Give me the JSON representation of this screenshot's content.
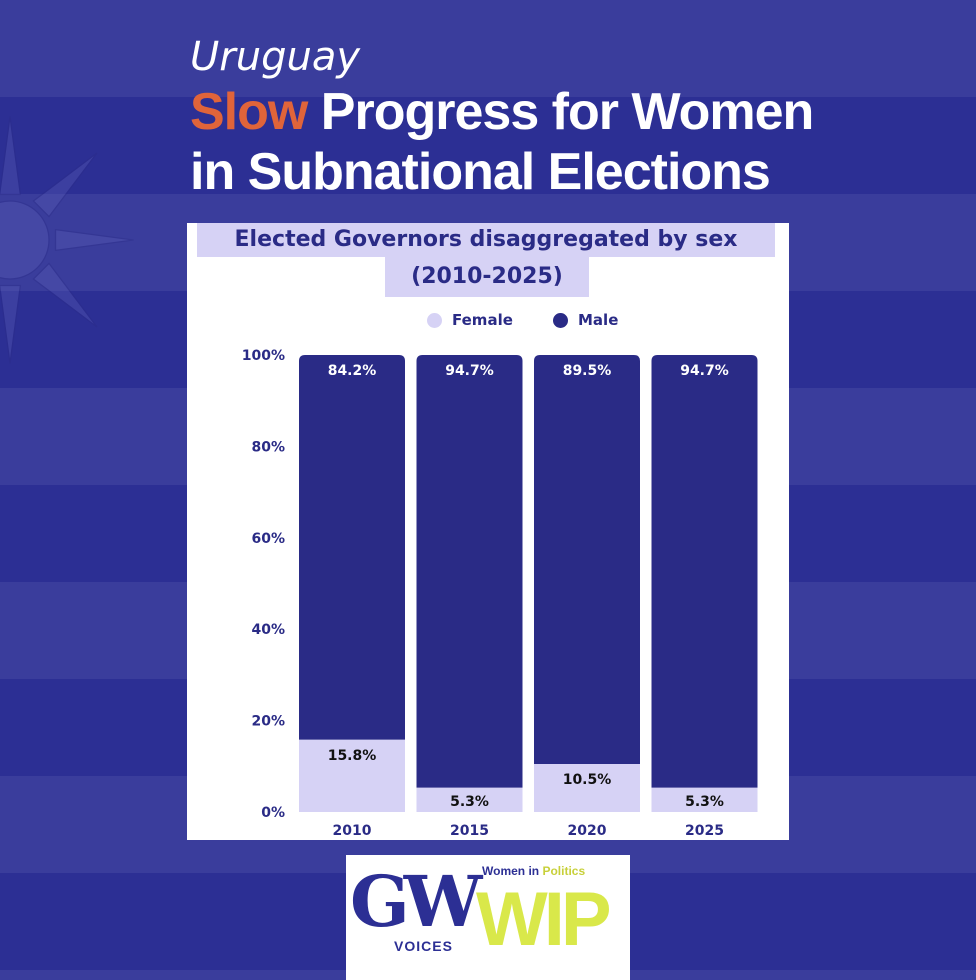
{
  "header": {
    "country": "Uruguay",
    "headline_accent": "Slow",
    "headline_rest": " Progress for Women",
    "headline_line2": "in Subnational Elections"
  },
  "colors": {
    "background": "#3a3d9c",
    "stripe": "#2c2f94",
    "accent": "#e0643a",
    "female": "#d6d2f5",
    "male": "#2a2b86",
    "logo_green": "#d9e84a"
  },
  "chart_data": {
    "type": "bar",
    "stacked": true,
    "title_line1": "Elected Governors disaggregated by sex",
    "title_line2": "(2010-2025)",
    "categories": [
      "2010",
      "2015",
      "2020",
      "2025"
    ],
    "series": [
      {
        "name": "Female",
        "values": [
          15.8,
          5.3,
          10.5,
          5.3
        ],
        "labels": [
          "15.8%",
          "5.3%",
          "10.5%",
          "5.3%"
        ]
      },
      {
        "name": "Male",
        "values": [
          84.2,
          94.7,
          89.5,
          94.7
        ],
        "labels": [
          "84.2%",
          "94.7%",
          "89.5%",
          "94.7%"
        ]
      }
    ],
    "ylim": [
      0,
      100
    ],
    "yticks": [
      "0%",
      "20%",
      "40%",
      "60%",
      "80%",
      "100%"
    ],
    "ytick_values": [
      0,
      20,
      40,
      60,
      80,
      100
    ],
    "legend_position": "top-center",
    "grid": false
  },
  "logo": {
    "gw": "GW",
    "voices": "VOICES",
    "sub_prefix": "Women in ",
    "sub_highlight": "Politics",
    "wip": "WIP"
  }
}
